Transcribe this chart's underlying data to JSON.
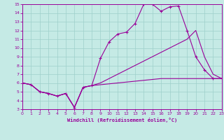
{
  "xlabel": "Windchill (Refroidissement éolien,°C)",
  "bg_color": "#c5eae5",
  "line_color": "#990099",
  "grid_color": "#9ecfca",
  "xlim": [
    0,
    23
  ],
  "ylim": [
    3,
    15
  ],
  "xticks": [
    0,
    1,
    2,
    3,
    4,
    5,
    6,
    7,
    8,
    9,
    10,
    11,
    12,
    13,
    14,
    15,
    16,
    17,
    18,
    19,
    20,
    21,
    22,
    23
  ],
  "yticks": [
    3,
    4,
    5,
    6,
    7,
    8,
    9,
    10,
    11,
    12,
    13,
    14,
    15
  ],
  "curve_marked_x": [
    0,
    1,
    2,
    3,
    4,
    5,
    6,
    7,
    8,
    9,
    10,
    11,
    12,
    13,
    14,
    15,
    16,
    17,
    18,
    19,
    20,
    21,
    22,
    23
  ],
  "curve_marked_y": [
    6.0,
    5.8,
    5.0,
    4.8,
    4.5,
    4.8,
    3.2,
    5.5,
    5.7,
    8.8,
    10.7,
    11.6,
    11.8,
    12.8,
    15.0,
    15.0,
    14.2,
    14.7,
    14.8,
    12.0,
    9.0,
    7.5,
    6.5,
    6.5
  ],
  "curve_high_x": [
    0,
    1,
    2,
    3,
    4,
    5,
    6,
    7,
    8,
    9,
    10,
    11,
    12,
    13,
    14,
    15,
    16,
    17,
    18,
    19,
    20,
    21,
    22,
    23
  ],
  "curve_high_y": [
    6.0,
    5.8,
    5.0,
    4.8,
    4.5,
    4.8,
    3.2,
    5.5,
    5.7,
    6.0,
    6.5,
    7.0,
    7.5,
    8.0,
    8.5,
    9.0,
    9.5,
    10.0,
    10.5,
    11.0,
    12.0,
    9.0,
    7.0,
    6.5
  ],
  "curve_low_x": [
    0,
    1,
    2,
    3,
    4,
    5,
    6,
    7,
    8,
    9,
    10,
    11,
    12,
    13,
    14,
    15,
    16,
    17,
    18,
    19,
    20,
    21,
    22,
    23
  ],
  "curve_low_y": [
    6.0,
    5.8,
    5.0,
    4.8,
    4.5,
    4.8,
    3.2,
    5.5,
    5.7,
    5.8,
    5.9,
    6.0,
    6.1,
    6.2,
    6.3,
    6.4,
    6.5,
    6.5,
    6.5,
    6.5,
    6.5,
    6.5,
    6.5,
    6.5
  ]
}
